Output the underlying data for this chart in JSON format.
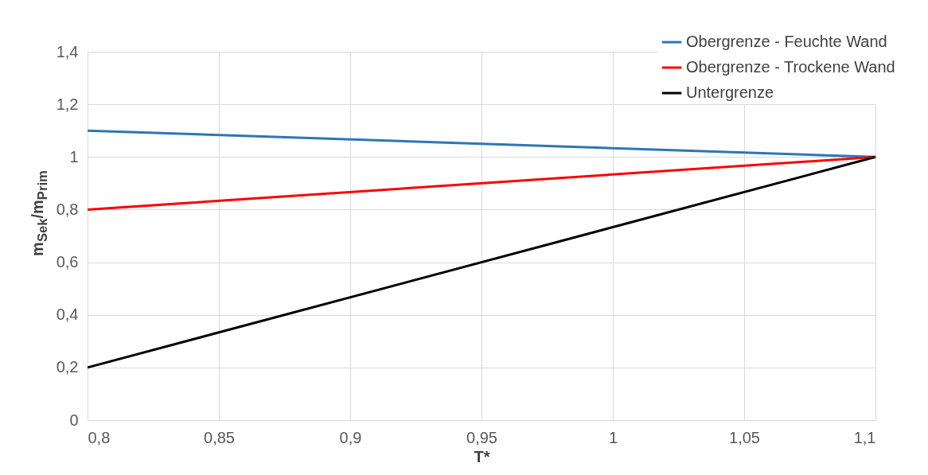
{
  "chart_data": {
    "type": "line",
    "xlabel": "T*",
    "ylabel": "m$_{Sek}$/m$_{Prim}$",
    "x": [
      0.8,
      1.1
    ],
    "series": [
      {
        "name": "Obergrenze - Feuchte Wand",
        "color": "#2e75b6",
        "values": [
          1.1,
          1.0
        ]
      },
      {
        "name": "Obergrenze - Trockene Wand",
        "color": "#ff0000",
        "values": [
          0.8,
          1.0
        ]
      },
      {
        "name": "Untergrenze",
        "color": "#000000",
        "values": [
          0.2,
          1.0
        ]
      }
    ],
    "xlim": [
      0.8,
      1.1
    ],
    "xticks": [
      {
        "value": 0.8,
        "label": "0,8"
      },
      {
        "value": 0.85,
        "label": "0,85"
      },
      {
        "value": 0.9,
        "label": "0,9"
      },
      {
        "value": 0.95,
        "label": "0,95"
      },
      1,
      {
        "value": 1.05,
        "label": "1,05"
      },
      {
        "value": 1.1,
        "label": "1,1"
      }
    ],
    "ylim": [
      0,
      1.4
    ],
    "yticks": [
      0,
      {
        "value": 0.2,
        "label": "0,2"
      },
      {
        "value": 0.4,
        "label": "0,4"
      },
      {
        "value": 0.6,
        "label": "0,6"
      },
      {
        "value": 0.8,
        "label": "0,8"
      },
      1,
      {
        "value": 1.2,
        "label": "1,2"
      },
      {
        "value": 1.4,
        "label": "1,4"
      }
    ],
    "grid": true,
    "legend": "top right",
    "marker": "none",
    "line_style": "solid"
  }
}
